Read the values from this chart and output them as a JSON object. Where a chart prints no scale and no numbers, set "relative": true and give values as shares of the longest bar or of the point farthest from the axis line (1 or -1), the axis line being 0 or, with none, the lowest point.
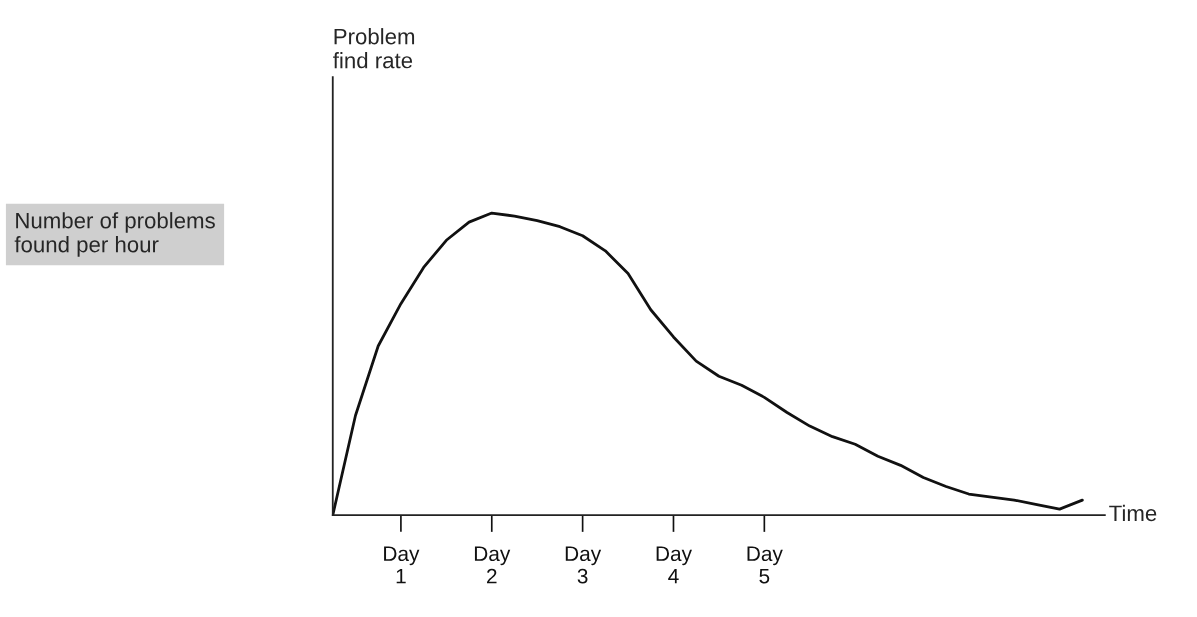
{
  "chart_data": {
    "type": "line",
    "relative": true,
    "xlabel": "Time",
    "annotations": [
      "Problem\nfind rate",
      "Number of problems\nfound per hour"
    ],
    "categories": [
      null,
      null,
      null,
      "Day\n1",
      null,
      null,
      null,
      "Day\n2",
      null,
      null,
      null,
      "Day\n3",
      null,
      null,
      null,
      "Day\n4",
      null,
      null,
      null,
      "Day\n5",
      null,
      null,
      null,
      null,
      null,
      null,
      null,
      null,
      null,
      null,
      null,
      null,
      null,
      null
    ],
    "series": [
      {
        "color": "#111111",
        "values": [
          0,
          0.33,
          0.56,
          0.7,
          0.82,
          0.91,
          0.97,
          1.0,
          0.99,
          0.975,
          0.955,
          0.925,
          0.875,
          0.8,
          0.68,
          0.59,
          0.51,
          0.46,
          0.43,
          0.39,
          0.34,
          0.295,
          0.26,
          0.235,
          0.195,
          0.165,
          0.125,
          0.095,
          0.07,
          0.06,
          0.05,
          0.035,
          0.02,
          0.05
        ]
      }
    ],
    "grid": false,
    "marker": "none",
    "line_style": "solid"
  }
}
